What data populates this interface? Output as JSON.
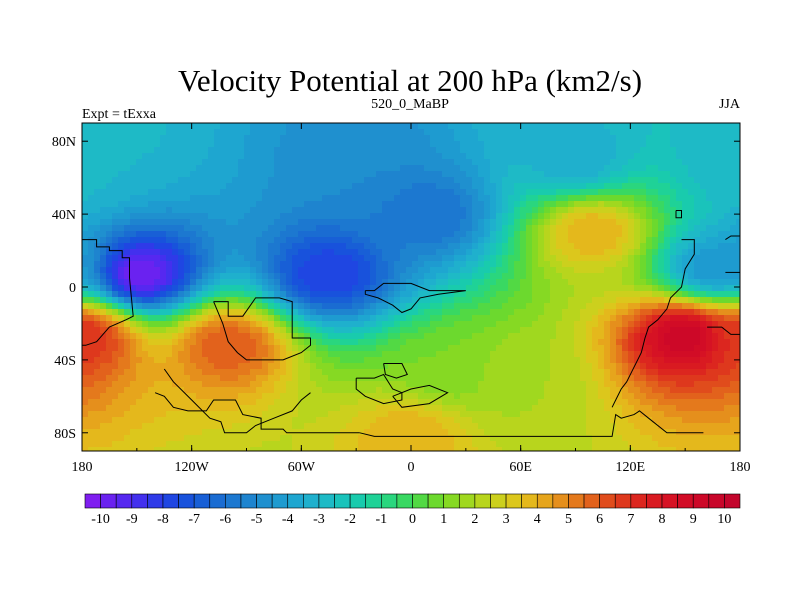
{
  "chart_data": {
    "type": "heatmap",
    "title": "Velocity Potential at 200 hPa (km2/s)",
    "subtitle_left": "Expt = tExxa",
    "subtitle_center": "520_0_MaBP",
    "subtitle_right": "JJA",
    "x_range": [
      -180,
      180
    ],
    "y_range": [
      -90,
      90
    ],
    "x_ticks": [
      {
        "value": -180,
        "label": "180"
      },
      {
        "value": -120,
        "label": "120W"
      },
      {
        "value": -60,
        "label": "60W"
      },
      {
        "value": 0,
        "label": "0"
      },
      {
        "value": 60,
        "label": "60E"
      },
      {
        "value": 120,
        "label": "120E"
      },
      {
        "value": 180,
        "label": "180"
      }
    ],
    "y_ticks": [
      {
        "value": 80,
        "label": "80N"
      },
      {
        "value": 40,
        "label": "40N"
      },
      {
        "value": 0,
        "label": "0"
      },
      {
        "value": -40,
        "label": "40S"
      },
      {
        "value": -80,
        "label": "80S"
      }
    ],
    "colorbar": {
      "min": -10.5,
      "max": 10.5,
      "step": 0.5,
      "labels": [
        "-10",
        "-9",
        "-8",
        "-7",
        "-6",
        "-5",
        "-4",
        "-3",
        "-2",
        "-1",
        "0",
        "1",
        "2",
        "3",
        "4",
        "5",
        "6",
        "7",
        "8",
        "9",
        "10"
      ],
      "colors": [
        "#7f1ef0",
        "#6a22f0",
        "#5628f0",
        "#4330ee",
        "#2f3ae8",
        "#1f46e2",
        "#1852dc",
        "#185fd6",
        "#1a6cd2",
        "#1c78d0",
        "#1e84cf",
        "#1f90cf",
        "#1e9bd0",
        "#1ea6d0",
        "#1fb0cd",
        "#1ebac6",
        "#1ac3bb",
        "#19cbad",
        "#1fd297",
        "#2ad67e",
        "#39d862",
        "#52d944",
        "#6cd92e",
        "#86d923",
        "#a0d81f",
        "#b8d51d",
        "#ccd01d",
        "#dcc71c",
        "#e4b81c",
        "#e6a51c",
        "#e58f1c",
        "#e4791c",
        "#e2621c",
        "#e04c1c",
        "#de381d",
        "#dc261f",
        "#d91a21",
        "#d61224",
        "#d20c26",
        "#cd0828",
        "#c8062a",
        "#c3052c"
      ]
    },
    "field_centers": [
      {
        "lon": -180,
        "lat": 70,
        "value": -3.0
      },
      {
        "lon": -30,
        "lat": 70,
        "value": -5.0
      },
      {
        "lon": 90,
        "lat": 70,
        "value": -3.5
      },
      {
        "lon": -148,
        "lat": 7,
        "value": -10.0
      },
      {
        "lon": -45,
        "lat": 7,
        "value": -8.0
      },
      {
        "lon": 10,
        "lat": 40,
        "value": -6.0
      },
      {
        "lon": 165,
        "lat": 10,
        "value": -4.5
      },
      {
        "lon": -178,
        "lat": -27,
        "value": 7.0
      },
      {
        "lon": -100,
        "lat": -32,
        "value": 6.0
      },
      {
        "lon": 150,
        "lat": -27,
        "value": 9.5
      },
      {
        "lon": 20,
        "lat": -45,
        "value": 1.0
      },
      {
        "lon": 60,
        "lat": -50,
        "value": 2.0
      },
      {
        "lon": 100,
        "lat": 30,
        "value": 4.0
      },
      {
        "lon": 0,
        "lat": -82,
        "value": 4.0
      }
    ],
    "coastline_polygons": [
      [
        [
          -180,
          26
        ],
        [
          -172,
          26
        ],
        [
          -172,
          22
        ],
        [
          -165,
          22
        ],
        [
          -165,
          20
        ],
        [
          -158,
          20
        ],
        [
          -158,
          16
        ],
        [
          -154,
          16
        ],
        [
          -154,
          5
        ],
        [
          -152,
          -16
        ],
        [
          -156,
          -18
        ],
        [
          -165,
          -22
        ],
        [
          -172,
          -30
        ],
        [
          -178,
          -32
        ],
        [
          -180,
          -32
        ]
      ],
      [
        [
          -108,
          -8
        ],
        [
          -100,
          -8
        ],
        [
          -100,
          -16
        ],
        [
          -92,
          -16
        ],
        [
          -85,
          -6
        ],
        [
          -72,
          -6
        ],
        [
          -65,
          -8
        ],
        [
          -65,
          -28
        ],
        [
          -55,
          -28
        ],
        [
          -55,
          -32
        ],
        [
          -60,
          -36
        ],
        [
          -70,
          -40
        ],
        [
          -90,
          -40
        ],
        [
          -95,
          -36
        ],
        [
          -100,
          -30
        ],
        [
          -103,
          -20
        ],
        [
          -108,
          -8
        ]
      ],
      [
        [
          -135,
          -45
        ],
        [
          -130,
          -52
        ],
        [
          -120,
          -62
        ],
        [
          -110,
          -72
        ],
        [
          -104,
          -74
        ],
        [
          -102,
          -80
        ],
        [
          -90,
          -80
        ],
        [
          -85,
          -76
        ],
        [
          -75,
          -72
        ],
        [
          -65,
          -68
        ],
        [
          -60,
          -62
        ],
        [
          -55,
          -58
        ]
      ],
      [
        [
          -140,
          -58
        ],
        [
          -135,
          -60
        ],
        [
          -130,
          -66
        ],
        [
          -122,
          -68
        ],
        [
          -112,
          -68
        ],
        [
          -108,
          -62
        ],
        [
          -96,
          -62
        ],
        [
          -92,
          -70
        ],
        [
          -82,
          -72
        ],
        [
          -82,
          -78
        ],
        [
          -70,
          -78
        ],
        [
          -68,
          -80
        ],
        [
          -28,
          -80
        ]
      ],
      [
        [
          -28,
          -80
        ],
        [
          -20,
          -82
        ],
        [
          -10,
          -82
        ],
        [
          0,
          -82
        ],
        [
          20,
          -82
        ],
        [
          60,
          -82
        ],
        [
          75,
          -82
        ],
        [
          110,
          -82
        ],
        [
          112,
          -70
        ],
        [
          115,
          -72
        ],
        [
          122,
          -70
        ],
        [
          125,
          -68
        ],
        [
          130,
          -72
        ],
        [
          140,
          -80
        ],
        [
          160,
          -80
        ]
      ],
      [
        [
          -30,
          -50
        ],
        [
          -20,
          -50
        ],
        [
          -15,
          -48
        ],
        [
          -10,
          -56
        ],
        [
          -5,
          -58
        ],
        [
          -5,
          -62
        ],
        [
          -15,
          -64
        ],
        [
          -25,
          -60
        ],
        [
          -30,
          -56
        ],
        [
          -30,
          -50
        ]
      ],
      [
        [
          -15,
          -42
        ],
        [
          -5,
          -42
        ],
        [
          -2,
          -48
        ],
        [
          -8,
          -50
        ],
        [
          -14,
          -48
        ],
        [
          -15,
          -42
        ]
      ],
      [
        [
          -10,
          -60
        ],
        [
          0,
          -56
        ],
        [
          10,
          -54
        ],
        [
          20,
          -58
        ],
        [
          10,
          -64
        ],
        [
          -5,
          -66
        ],
        [
          -10,
          -60
        ]
      ],
      [
        [
          -25,
          -2
        ],
        [
          -20,
          -2
        ],
        [
          -15,
          2
        ],
        [
          0,
          2
        ],
        [
          5,
          0
        ],
        [
          10,
          -2
        ],
        [
          30,
          -2
        ],
        [
          15,
          -4
        ],
        [
          5,
          -6
        ],
        [
          0,
          -12
        ],
        [
          -5,
          -14
        ],
        [
          -10,
          -10
        ],
        [
          -18,
          -6
        ],
        [
          -25,
          -4
        ],
        [
          -25,
          -2
        ]
      ],
      [
        [
          148,
          26
        ],
        [
          155,
          26
        ],
        [
          155,
          18
        ],
        [
          150,
          10
        ],
        [
          148,
          0
        ],
        [
          142,
          -6
        ],
        [
          140,
          -12
        ],
        [
          135,
          -18
        ],
        [
          130,
          -22
        ],
        [
          128,
          -28
        ],
        [
          126,
          -36
        ],
        [
          122,
          -44
        ],
        [
          118,
          -52
        ],
        [
          115,
          -56
        ],
        [
          112,
          -62
        ],
        [
          110,
          -66
        ]
      ],
      [
        [
          162,
          -22
        ],
        [
          170,
          -22
        ],
        [
          175,
          -26
        ],
        [
          180,
          -26
        ]
      ],
      [
        [
          172,
          26
        ],
        [
          175,
          28
        ],
        [
          180,
          28
        ]
      ],
      [
        [
          145,
          42
        ],
        [
          148,
          42
        ],
        [
          148,
          38
        ],
        [
          145,
          38
        ],
        [
          145,
          42
        ]
      ],
      [
        [
          172,
          8
        ],
        [
          180,
          8
        ]
      ]
    ]
  }
}
